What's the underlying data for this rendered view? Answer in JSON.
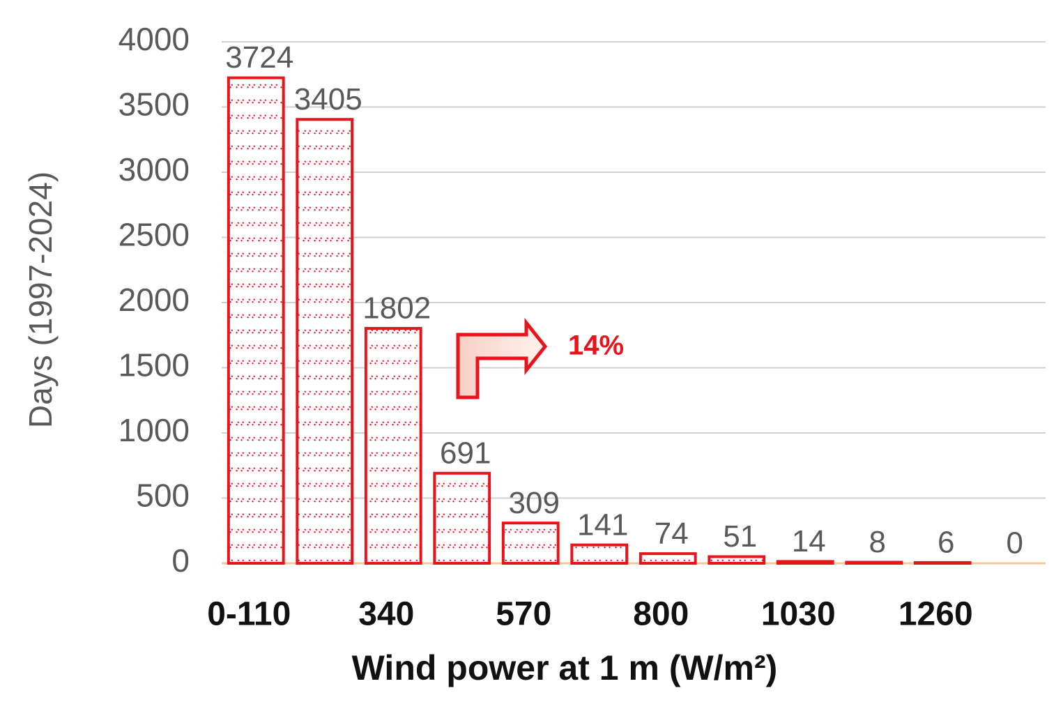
{
  "chart_data": {
    "type": "bar",
    "y_axis_title": "Days (1997-2024)",
    "x_axis_title": "Wind power at 1 m (W/m²)",
    "annotation": "14%",
    "categories": [
      "0-110",
      null,
      "340",
      null,
      "570",
      null,
      "800",
      null,
      "1030",
      null,
      "1260",
      null
    ],
    "values": [
      3724,
      3405,
      1802,
      691,
      309,
      141,
      74,
      51,
      14,
      8,
      6,
      0
    ],
    "color": "#e8141b",
    "ylim": [
      0,
      4000
    ],
    "yticks": [
      0,
      500,
      1000,
      1500,
      2000,
      2500,
      3000,
      3500,
      4000
    ],
    "grid": true
  }
}
